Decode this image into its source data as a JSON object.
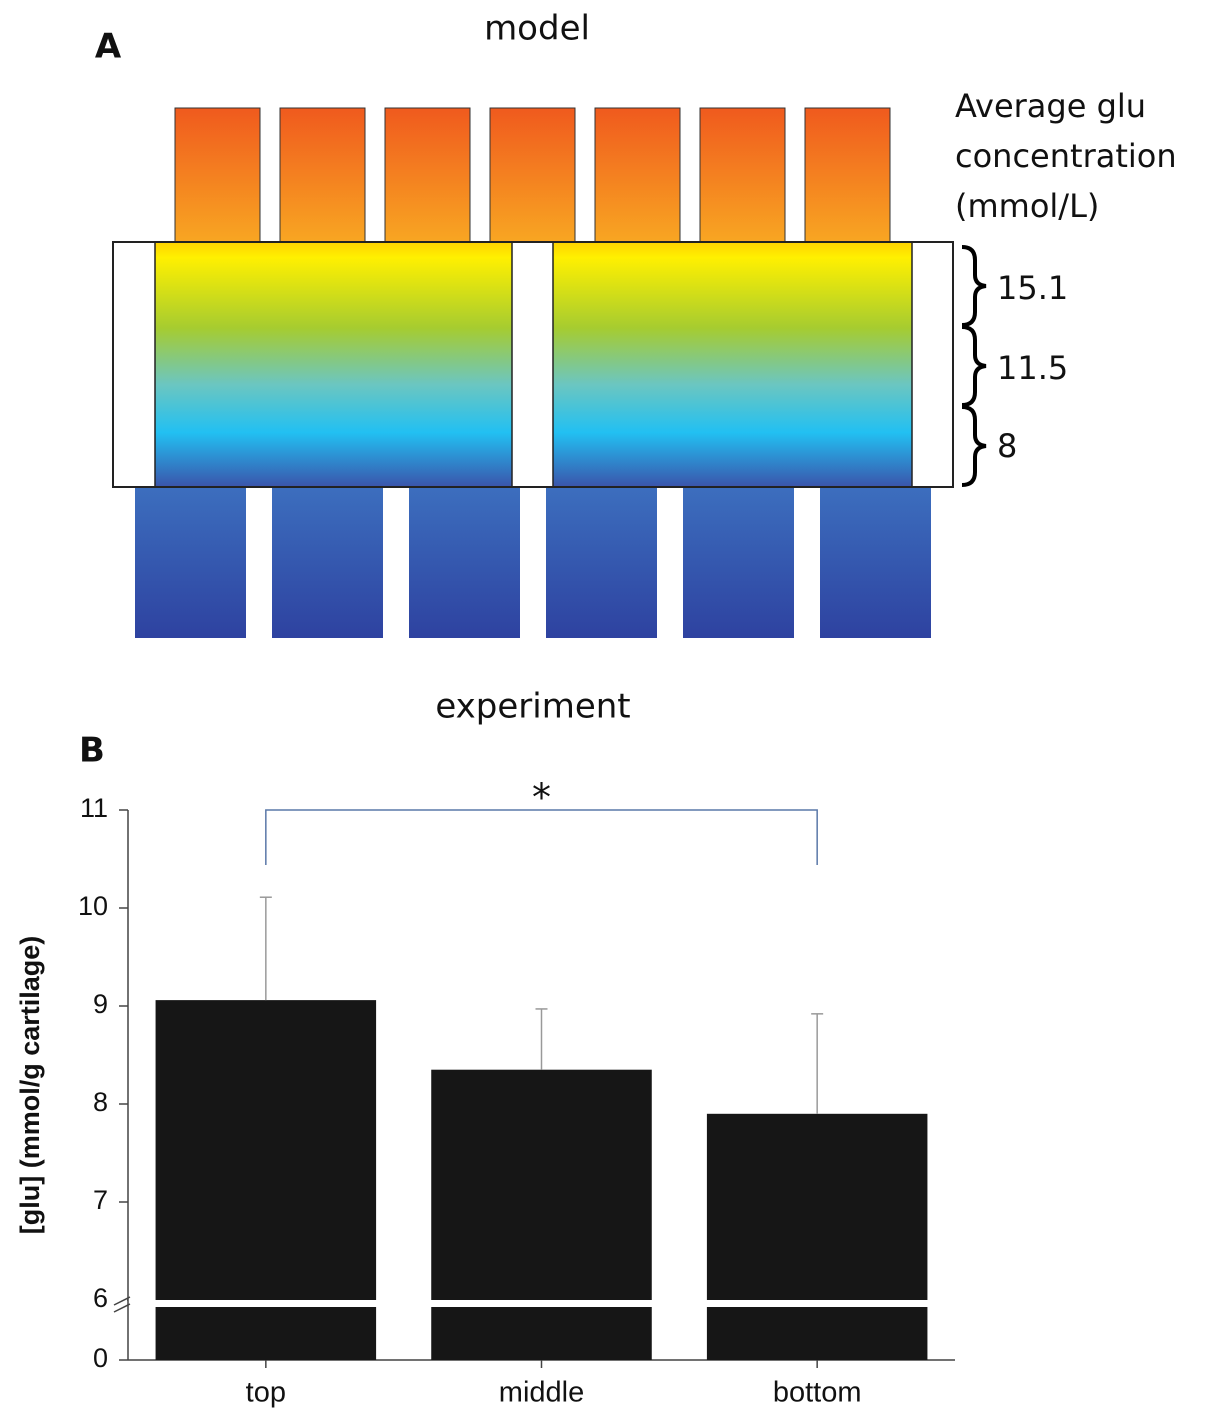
{
  "diagram": {
    "panel": "A",
    "title": "model",
    "legend_title": [
      "Average  glu",
      "concentration",
      "(mmol/L)"
    ],
    "levels": [
      "15.1",
      "11.5",
      "8"
    ]
  },
  "chart_data": {
    "type": "bar",
    "panel": "B",
    "title": "experiment",
    "y_label": "[glu] (mmol/g cartilage)",
    "categories": [
      "top",
      "middle",
      "bottom"
    ],
    "values": [
      9.06,
      8.35,
      7.9
    ],
    "errors": [
      1.05,
      0.62,
      1.02
    ],
    "color": "#161616",
    "ylim": [
      0,
      11
    ],
    "yticks": [
      0,
      6,
      7,
      8,
      9,
      10,
      11
    ],
    "axis_break": 6,
    "significance": {
      "label": "*",
      "from": 0,
      "to": 2
    }
  }
}
